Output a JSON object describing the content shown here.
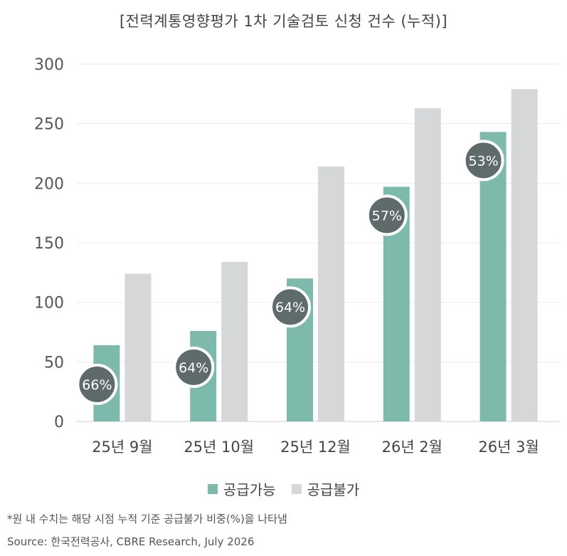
{
  "chart_data": {
    "type": "bar",
    "title": "[전력계통영향평가 1차 기술검토 신청 건수 (누적)]",
    "categories": [
      "25년 9월",
      "25년 10월",
      "25년 12월",
      "26년 2월",
      "26년 3월"
    ],
    "series": [
      {
        "name": "공급가능",
        "values": [
          64,
          76,
          120,
          197,
          243
        ],
        "color": "#7dbaab"
      },
      {
        "name": "공급불가",
        "values": [
          124,
          134,
          214,
          263,
          279
        ],
        "color": "#d5d7d8"
      }
    ],
    "ratio_labels": [
      "66%",
      "64%",
      "64%",
      "57%",
      "53%"
    ],
    "ylim": [
      0,
      300
    ],
    "yticks": [
      0,
      50,
      100,
      150,
      200,
      250,
      300
    ],
    "grid": true,
    "legend_position": "bottom"
  },
  "legend": {
    "supply_ok": "공급가능",
    "supply_no": "공급불가"
  },
  "footnote": "*원 내 수치는 해당 시점 누적 기준 공급불가 비중(%)을 나타냄",
  "source": "Source: 한국전력공사, CBRE Research, July 2026",
  "colors": {
    "green": "#7dbaab",
    "gray": "#d5d7d8",
    "circle": "#5f6a6a"
  }
}
